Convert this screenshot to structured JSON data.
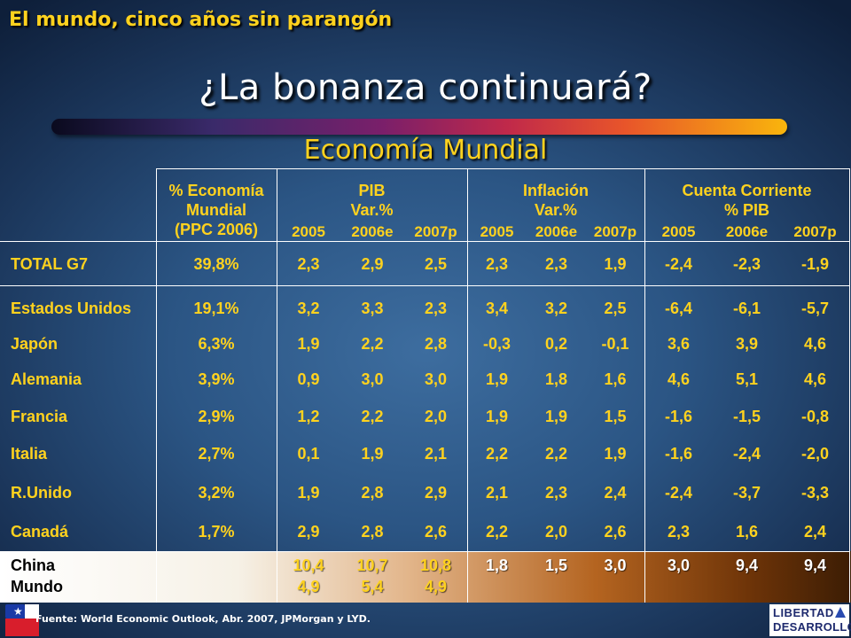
{
  "header": {
    "overtitle": "El mundo, cinco años sin parangón",
    "title": "¿La bonanza continuará?",
    "subtitle": "Economía Mundial"
  },
  "table": {
    "groups": {
      "share": [
        "% Economía",
        "Mundial",
        "(PPC 2006)"
      ],
      "pib": [
        "PIB",
        "Var.%"
      ],
      "inflacion": [
        "Inflación",
        "Var.%"
      ],
      "cuenta": [
        "Cuenta Corriente",
        "% PIB"
      ]
    },
    "years": [
      "2005",
      "2006e",
      "2007p"
    ],
    "rows": [
      {
        "name": "TOTAL G7",
        "share": "39,8%",
        "pib": [
          "2,3",
          "2,9",
          "2,5"
        ],
        "inf": [
          "2,3",
          "2,3",
          "1,9"
        ],
        "cc": [
          "-2,4",
          "-2,3",
          "-1,9"
        ]
      },
      {
        "name": "Estados Unidos",
        "share": "19,1%",
        "pib": [
          "3,2",
          "3,3",
          "2,3"
        ],
        "inf": [
          "3,4",
          "3,2",
          "2,5"
        ],
        "cc": [
          "-6,4",
          "-6,1",
          "-5,7"
        ]
      },
      {
        "name": "Japón",
        "share": "6,3%",
        "pib": [
          "1,9",
          "2,2",
          "2,8"
        ],
        "inf": [
          "-0,3",
          "0,2",
          "-0,1"
        ],
        "cc": [
          "3,6",
          "3,9",
          "4,6"
        ]
      },
      {
        "name": "Alemania",
        "share": "3,9%",
        "pib": [
          "0,9",
          "3,0",
          "3,0"
        ],
        "inf": [
          "1,9",
          "1,8",
          "1,6"
        ],
        "cc": [
          "4,6",
          "5,1",
          "4,6"
        ]
      },
      {
        "name": "Francia",
        "share": "2,9%",
        "pib": [
          "1,2",
          "2,2",
          "2,0"
        ],
        "inf": [
          "1,9",
          "1,9",
          "1,5"
        ],
        "cc": [
          "-1,6",
          "-1,5",
          "-0,8"
        ]
      },
      {
        "name": "Italia",
        "share": "2,7%",
        "pib": [
          "0,1",
          "1,9",
          "2,1"
        ],
        "inf": [
          "2,2",
          "2,2",
          "1,9"
        ],
        "cc": [
          "-1,6",
          "-2,4",
          "-2,0"
        ]
      },
      {
        "name": "R.Unido",
        "share": "3,2%",
        "pib": [
          "1,9",
          "2,8",
          "2,9"
        ],
        "inf": [
          "2,1",
          "2,3",
          "2,4"
        ],
        "cc": [
          "-2,4",
          "-3,7",
          "-3,3"
        ]
      },
      {
        "name": "Canadá",
        "share": "1,7%",
        "pib": [
          "2,9",
          "2,8",
          "2,6"
        ],
        "inf": [
          "2,2",
          "2,0",
          "2,6"
        ],
        "cc": [
          "2,3",
          "1,6",
          "2,4"
        ]
      }
    ],
    "china": {
      "name": "China",
      "pib": [
        "10,4",
        "10,7",
        "10,8"
      ],
      "inf": [
        "1,8",
        "1,5",
        "3,0"
      ],
      "cc": [
        "3,0",
        "9,4",
        "9,4"
      ]
    },
    "mundo": {
      "name": "Mundo",
      "pib": [
        "4,9",
        "5,4",
        "4,9"
      ]
    }
  },
  "footer": {
    "source": "Fuente: World Economic Outlook, Abr. 2007, JPMorgan y LYD.",
    "logo_line1": "LIBERTAD",
    "logo_line2": "DESARROLLO"
  },
  "colors": {
    "text_accent": "#ffd21e",
    "background": "#2b5584",
    "rule": "#ffffff"
  }
}
